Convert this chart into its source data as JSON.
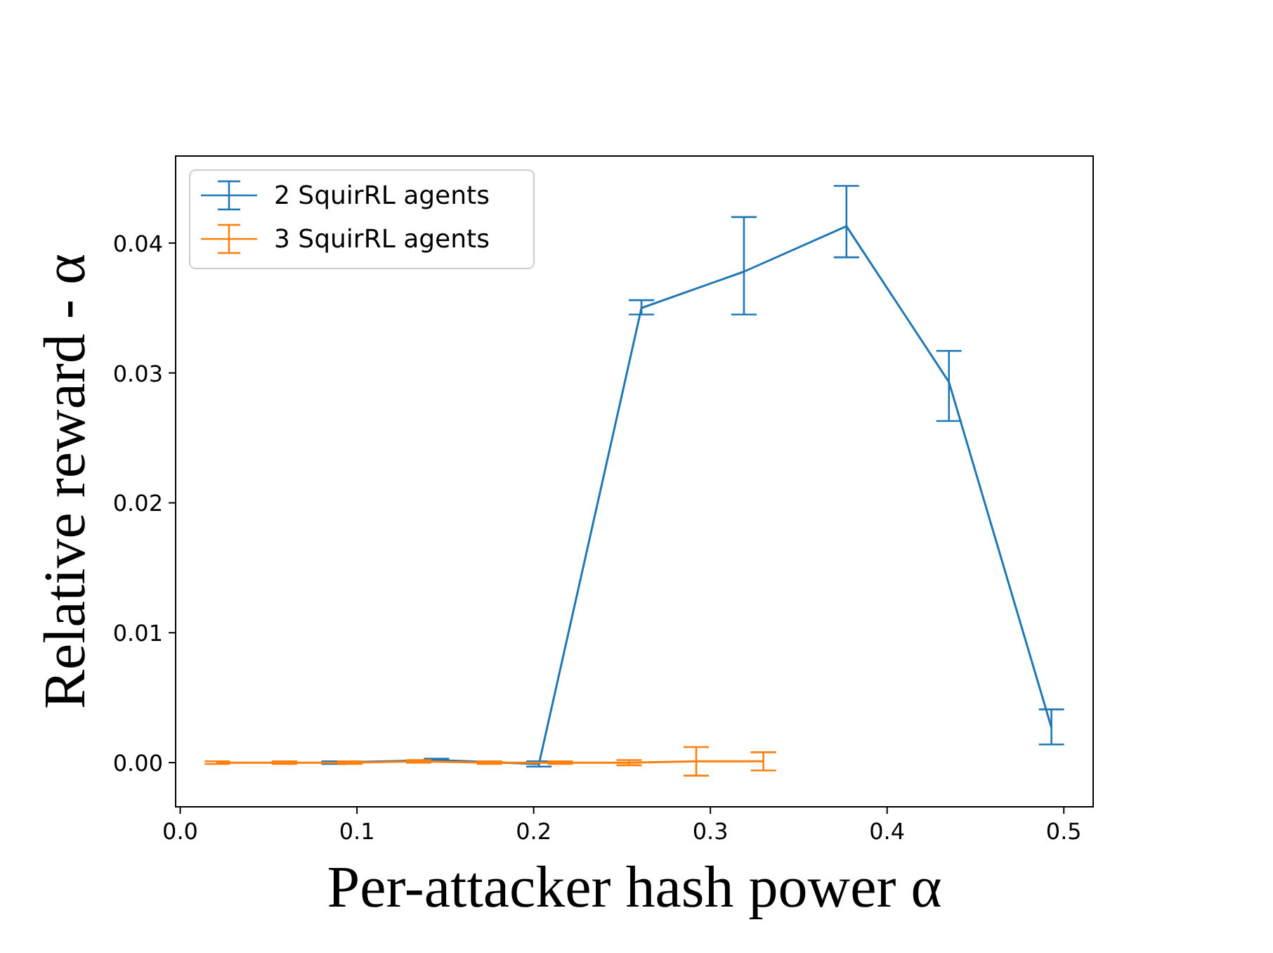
{
  "chart_data": {
    "type": "line",
    "xlabel": "Per-attacker hash power α",
    "ylabel": "Relative reward - α",
    "xlim": [
      -0.0026,
      0.5166
    ],
    "ylim": [
      -0.0034,
      0.0467
    ],
    "xticks": [
      {
        "value": 0,
        "label": "0.0"
      },
      0.1,
      0.2,
      0.3,
      0.4,
      {
        "value": 0.5,
        "label": "0.5"
      }
    ],
    "yticks": [
      {
        "value": 0,
        "label": "0.00"
      },
      {
        "value": 0.01,
        "label": "0.01"
      },
      {
        "value": 0.02,
        "label": "0.02"
      },
      {
        "value": 0.03,
        "label": "0.03"
      },
      {
        "value": 0.04,
        "label": "0.04"
      }
    ],
    "legend": "top left",
    "grid": false,
    "marker": "none",
    "line_style": "solid",
    "series": [
      {
        "name": "2 SquirRL agents",
        "color": "#1f77b4",
        "x": [
          0.087,
          0.145,
          0.203,
          0.261,
          0.319,
          0.377,
          0.435,
          0.493
        ],
        "values": [
          0.0,
          0.0002,
          -0.0001,
          0.035,
          0.0378,
          0.0413,
          0.0293,
          0.0027
        ],
        "errors": [
          0.0001,
          0.0001,
          0.0002,
          [
            0.0345,
            0.0356
          ],
          [
            0.0345,
            0.042
          ],
          [
            0.0389,
            0.0444
          ],
          [
            0.0263,
            0.0317
          ],
          [
            0.0014,
            0.0041
          ]
        ]
      },
      {
        "name": "3 SquirRL agents",
        "color": "#ff7f0e",
        "x": [
          0.021,
          0.059,
          0.096,
          0.135,
          0.175,
          0.215,
          0.254,
          0.292,
          0.33
        ],
        "values": [
          0.0,
          0.0,
          0.0,
          0.0001,
          0.0,
          0.0,
          0.0,
          0.0001,
          0.0001
        ],
        "errors": [
          0.0001,
          0.0001,
          0.0001,
          0.0001,
          0.0001,
          0.0001,
          0.0002,
          0.0011,
          0.0007
        ]
      }
    ]
  }
}
